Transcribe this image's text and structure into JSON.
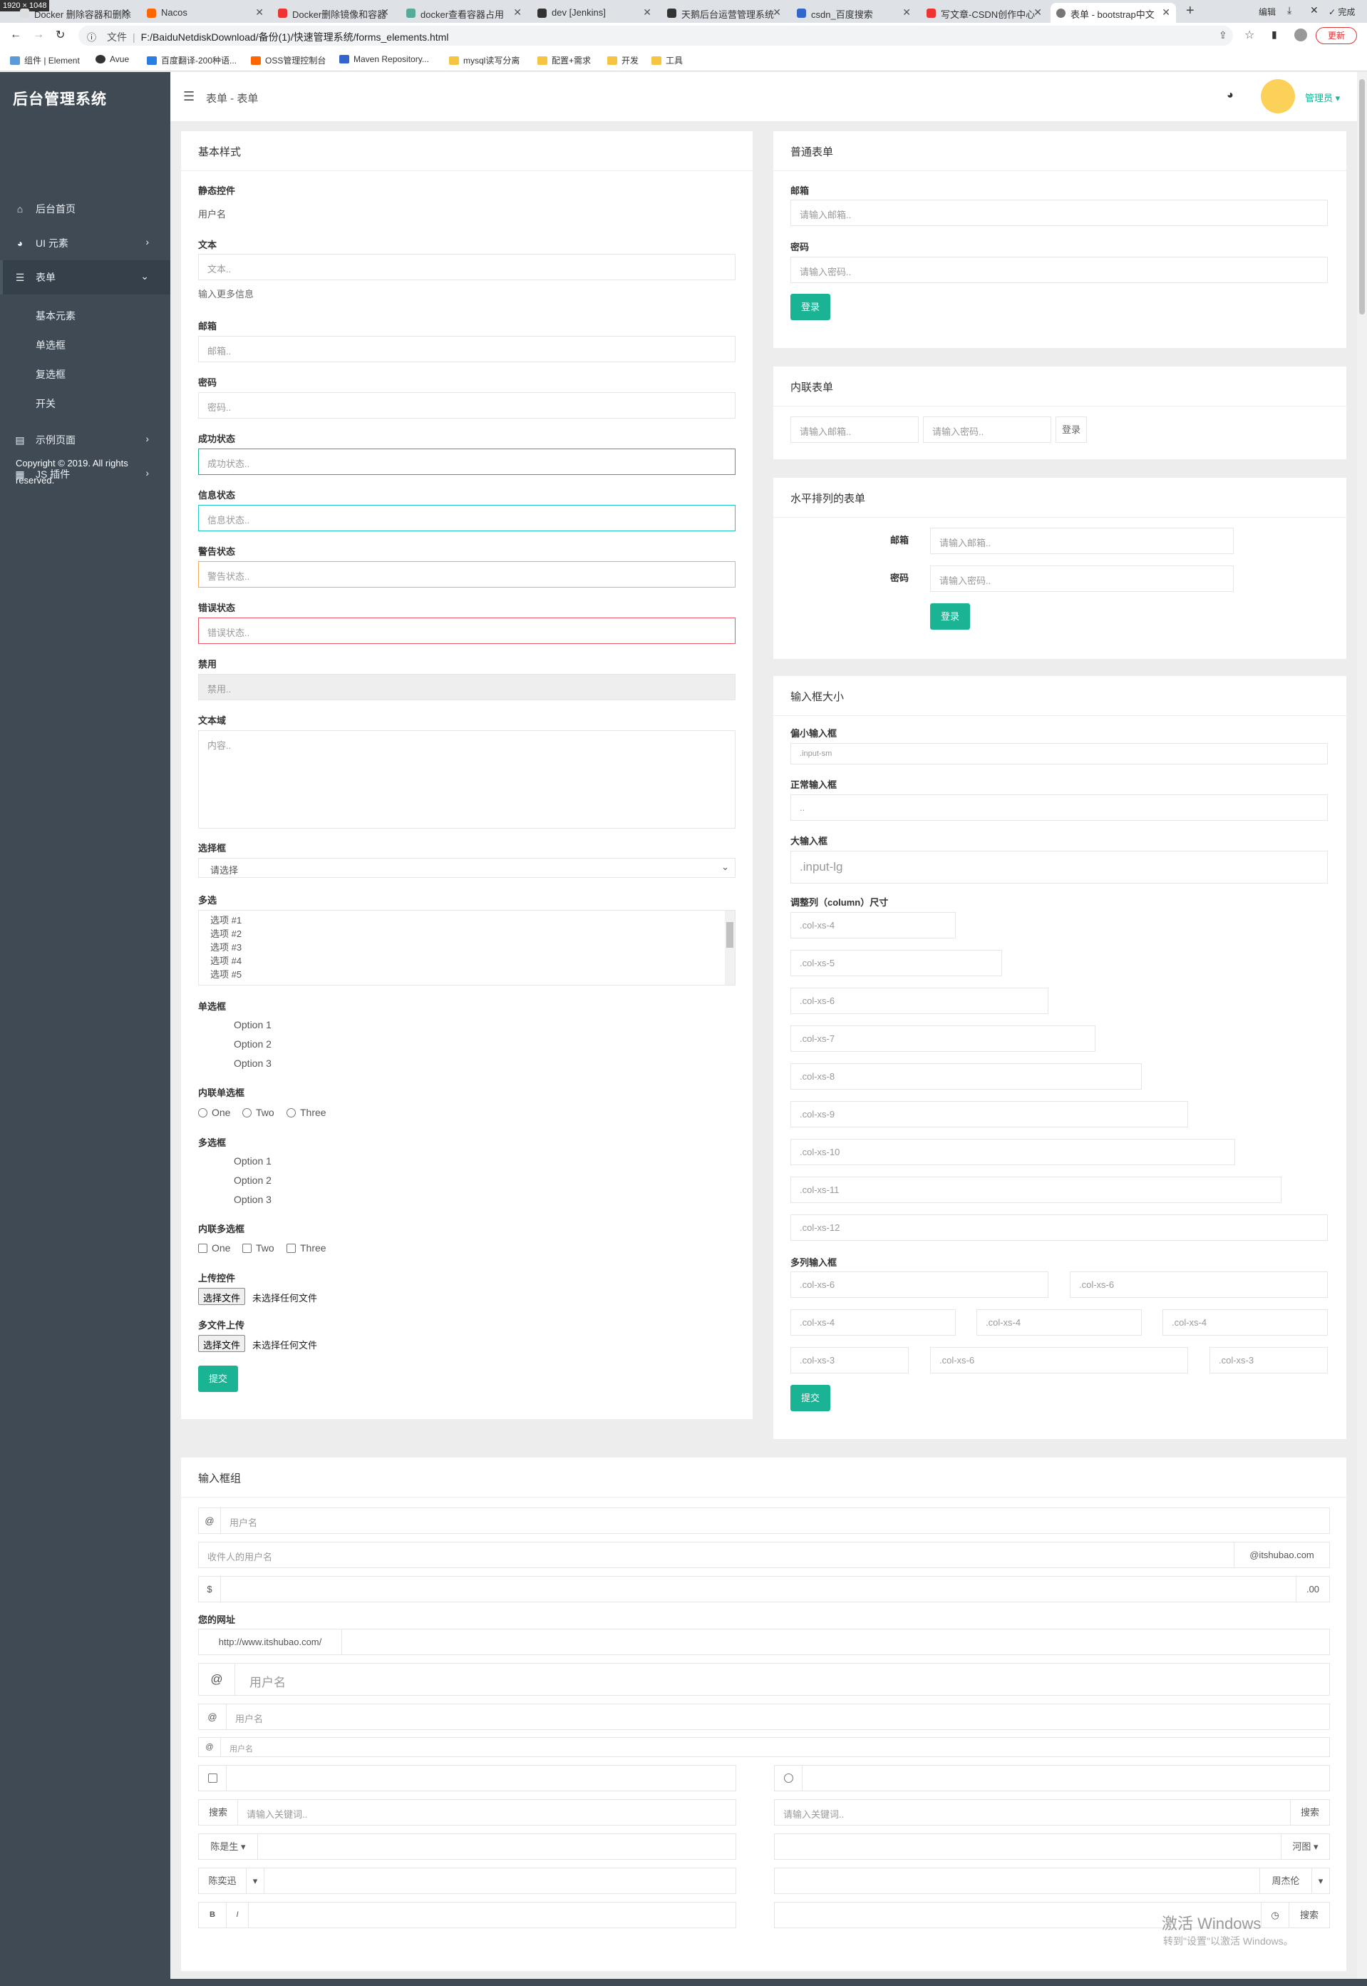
{
  "browser": {
    "size_badge": "1920 × 1048",
    "tabs": [
      {
        "title": "Docker 删除容器和删除",
        "color": "#ddd"
      },
      {
        "title": "Nacos",
        "color": "#f60"
      },
      {
        "title": "Docker删除镜像和容器",
        "color": "#e33"
      },
      {
        "title": "docker查看容器占用",
        "color": "#5a9"
      },
      {
        "title": "dev [Jenkins]",
        "color": "#333"
      },
      {
        "title": "天鹅后台运营管理系统",
        "color": "#333"
      },
      {
        "title": "csdn_百度搜索",
        "color": "#36c"
      },
      {
        "title": "写文章-CSDN创作中心",
        "color": "#e33"
      },
      {
        "title": "表单 - bootstrap中文",
        "color": "#555"
      }
    ],
    "tab_controls": {
      "new_tab": "+",
      "edit": "编辑",
      "done": "完成"
    },
    "url_prefix": "文件",
    "url": "F:/BaiduNetdiskDownload/备份(1)/快速管理系统/forms_elements.html",
    "update_label": "更新",
    "bookmarks": [
      "组件 | Element",
      "Avue",
      "百度翻译-200种语...",
      "OSS管理控制台",
      "Maven Repository...",
      "mysql读写分离",
      "配置+需求",
      "开发",
      "工具"
    ]
  },
  "sidebar": {
    "brand": "后台管理系统",
    "items": [
      {
        "label": "后台首页",
        "icon": "home-icon",
        "glyph": "⌂"
      },
      {
        "label": "UI 元素",
        "icon": "palette-icon",
        "glyph": "◕"
      },
      {
        "label": "表单",
        "icon": "list-icon",
        "glyph": "☰"
      },
      {
        "label": "示例页面",
        "icon": "file-icon",
        "glyph": "▤"
      },
      {
        "label": "JS 插件",
        "icon": "chart-icon",
        "glyph": "▦"
      }
    ],
    "subitems": [
      "基本元素",
      "单选框",
      "复选框",
      "开关"
    ],
    "copyright": "Copyright © 2019. All rights reserved."
  },
  "header": {
    "breadcrumb": "表单 - 表单",
    "user": "管理员"
  },
  "basic": {
    "title": "基本样式",
    "static_label": "静态控件",
    "static_value": "用户名",
    "text_label": "文本",
    "text_placeholder": "文本..",
    "help_text": "输入更多信息",
    "email_label": "邮箱",
    "email_placeholder": "邮箱..",
    "password_label": "密码",
    "password_placeholder": "密码..",
    "success_label": "成功状态",
    "success_placeholder": "成功状态..",
    "info_label": "信息状态",
    "info_placeholder": "信息状态..",
    "warning_label": "警告状态",
    "warning_placeholder": "警告状态..",
    "error_label": "错误状态",
    "error_placeholder": "错误状态..",
    "disabled_label": "禁用",
    "disabled_placeholder": "禁用..",
    "textarea_label": "文本域",
    "textarea_placeholder": "内容..",
    "select_label": "选择框",
    "select_value": "请选择",
    "multi_label": "多选",
    "multi_options": [
      "选项 #1",
      "选项 #2",
      "选项 #3",
      "选项 #4",
      "选项 #5"
    ],
    "radio_label": "单选框",
    "radio_options": [
      "Option 1",
      "Option 2",
      "Option 3"
    ],
    "inline_radio_label": "内联单选框",
    "inline_radio_options": [
      "One",
      "Two",
      "Three"
    ],
    "checkbox_label": "多选框",
    "checkbox_options": [
      "Option 1",
      "Option 2",
      "Option 3"
    ],
    "inline_checkbox_label": "内联多选框",
    "inline_checkbox_options": [
      "One",
      "Two",
      "Three"
    ],
    "upload_label": "上传控件",
    "multi_upload_label": "多文件上传",
    "file_button": "选择文件",
    "file_status": "未选择任何文件",
    "submit": "提交"
  },
  "normal_form": {
    "title": "普通表单",
    "email_label": "邮箱",
    "email_placeholder": "请输入邮箱..",
    "password_label": "密码",
    "password_placeholder": "请输入密码..",
    "login": "登录"
  },
  "inline_form": {
    "title": "内联表单",
    "email_placeholder": "请输入邮箱..",
    "password_placeholder": "请输入密码..",
    "login": "登录"
  },
  "horizontal_form": {
    "title": "水平排列的表单",
    "email_label": "邮箱",
    "email_placeholder": "请输入邮箱..",
    "password_label": "密码",
    "password_placeholder": "请输入密码..",
    "login": "登录"
  },
  "sizes": {
    "title": "输入框大小",
    "small_label": "偏小输入框",
    "small_placeholder": ".input-sm",
    "normal_label": "正常输入框",
    "normal_placeholder": "..",
    "large_label": "大输入框",
    "large_placeholder": ".input-lg",
    "columns_label": "调整列（column）尺寸",
    "columns": [
      ".col-xs-4",
      ".col-xs-5",
      ".col-xs-6",
      ".col-xs-7",
      ".col-xs-8",
      ".col-xs-9",
      ".col-xs-10",
      ".col-xs-11",
      ".col-xs-12"
    ],
    "multi_label": "多列输入框",
    "multi_rows": [
      [
        ".col-xs-6",
        ".col-xs-6"
      ],
      [
        ".col-xs-4",
        ".col-xs-4",
        ".col-xs-4"
      ],
      [
        ".col-xs-3",
        ".col-xs-6",
        ".col-xs-3"
      ]
    ],
    "submit": "提交"
  },
  "groups": {
    "title": "输入框组",
    "at": "@",
    "username_placeholder": "用户名",
    "recipient_placeholder": "收件人的用户名",
    "domain_suffix": "@itshubao.com",
    "dollar": "$",
    "cents": ".00",
    "url_label": "您的网址",
    "url_prefix": "http://www.itshubao.com/",
    "search_label": "搜索",
    "keyword_placeholder": "请输入关键词..",
    "dropdown_left": "陈是生",
    "dropdown_right": "河图",
    "split_left": "陈奕迅",
    "split_right": "周杰伦",
    "bold": "B",
    "italic": "I",
    "search_button": "搜索"
  },
  "os": {
    "watermark": "激活 Windows",
    "watermark_sub": "转到\"设置\"以激活 Windows。"
  }
}
